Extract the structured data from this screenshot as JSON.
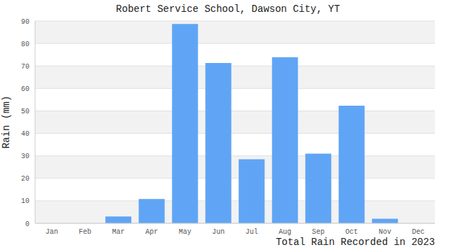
{
  "chart_data": {
    "type": "bar",
    "title": "Robert Service School, Dawson City, YT",
    "subtitle": "Total Rain Recorded in 2023",
    "y_label": "Rain (mm)",
    "categories": [
      "Jan",
      "Feb",
      "Mar",
      "Apr",
      "May",
      "Jun",
      "Jul",
      "Aug",
      "Sep",
      "Oct",
      "Nov",
      "Dec"
    ],
    "values": [
      0,
      0,
      3,
      10.8,
      88.7,
      71.3,
      28.5,
      73.9,
      31,
      52.3,
      2,
      0
    ],
    "color": "#60a5f5",
    "ylim": [
      0,
      90
    ],
    "yticks": [
      0,
      10,
      20,
      30,
      40,
      50,
      60,
      70,
      80,
      90
    ],
    "grid": true
  }
}
